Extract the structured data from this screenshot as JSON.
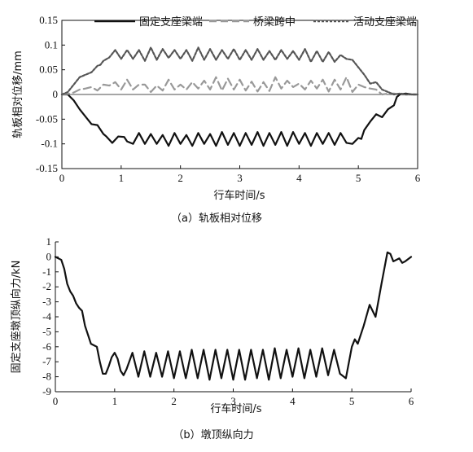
{
  "chart_data": [
    {
      "type": "line",
      "caption": "（a）轨板相对位移",
      "xlabel": "行车时间/s",
      "ylabel": "轨板相对位移/mm",
      "xlim": [
        0,
        6
      ],
      "ylim": [
        -0.15,
        0.15
      ],
      "xticks": [
        "0",
        "1",
        "2",
        "3",
        "4",
        "5",
        "6"
      ],
      "yticks": [
        "-0.15",
        "-0.1",
        "-0.05",
        "0",
        "0.05",
        "0.1",
        "0.15"
      ],
      "legend_position": "top",
      "series": [
        {
          "name": "固定支座梁端",
          "style": "solid",
          "color": "#111111",
          "x": [
            0,
            0.1,
            0.2,
            0.3,
            0.4,
            0.5,
            0.6,
            0.7,
            0.75,
            0.85,
            0.95,
            1.05,
            1.1,
            1.2,
            1.3,
            1.4,
            1.5,
            1.6,
            1.7,
            1.8,
            1.9,
            2.0,
            2.1,
            2.2,
            2.3,
            2.4,
            2.5,
            2.6,
            2.7,
            2.8,
            2.9,
            3.0,
            3.1,
            3.2,
            3.3,
            3.4,
            3.5,
            3.6,
            3.7,
            3.8,
            3.9,
            4.0,
            4.1,
            4.2,
            4.3,
            4.4,
            4.5,
            4.6,
            4.7,
            4.8,
            4.9,
            5.0,
            5.05,
            5.1,
            5.2,
            5.3,
            5.4,
            5.5,
            5.6,
            5.65,
            5.7,
            5.8,
            5.9,
            6.0
          ],
          "y": [
            0,
            0,
            -0.012,
            -0.03,
            -0.045,
            -0.06,
            -0.062,
            -0.08,
            -0.085,
            -0.098,
            -0.085,
            -0.086,
            -0.095,
            -0.1,
            -0.078,
            -0.1,
            -0.08,
            -0.1,
            -0.082,
            -0.104,
            -0.078,
            -0.1,
            -0.082,
            -0.104,
            -0.078,
            -0.1,
            -0.08,
            -0.104,
            -0.076,
            -0.102,
            -0.078,
            -0.104,
            -0.078,
            -0.102,
            -0.076,
            -0.104,
            -0.078,
            -0.102,
            -0.076,
            -0.104,
            -0.076,
            -0.1,
            -0.078,
            -0.104,
            -0.078,
            -0.1,
            -0.078,
            -0.102,
            -0.078,
            -0.098,
            -0.1,
            -0.088,
            -0.09,
            -0.072,
            -0.055,
            -0.04,
            -0.046,
            -0.03,
            -0.022,
            -0.005,
            0,
            0.002,
            0,
            0
          ]
        },
        {
          "name": "桥梁跨中",
          "style": "dash",
          "color": "#999999",
          "x": [
            0,
            0.1,
            0.2,
            0.3,
            0.4,
            0.5,
            0.6,
            0.7,
            0.8,
            0.9,
            1.0,
            1.1,
            1.2,
            1.3,
            1.4,
            1.5,
            1.6,
            1.7,
            1.8,
            1.9,
            2.0,
            2.1,
            2.2,
            2.3,
            2.4,
            2.5,
            2.6,
            2.7,
            2.8,
            2.9,
            3.0,
            3.1,
            3.2,
            3.3,
            3.4,
            3.5,
            3.6,
            3.7,
            3.8,
            3.9,
            4.0,
            4.1,
            4.2,
            4.3,
            4.4,
            4.5,
            4.6,
            4.7,
            4.8,
            4.9,
            5.0,
            5.1,
            5.2,
            5.3,
            5.4,
            5.5,
            5.6,
            5.7,
            5.8,
            5.9,
            6.0
          ],
          "y": [
            0,
            0.001,
            0.004,
            0.01,
            0.012,
            0.015,
            0.008,
            0.02,
            0.018,
            0.025,
            0.01,
            0.03,
            0.01,
            0.02,
            0.02,
            0.005,
            0.018,
            0.008,
            0.03,
            0.01,
            0.02,
            0.01,
            0.025,
            0.012,
            0.028,
            0.01,
            0.035,
            0.008,
            0.032,
            0.01,
            0.03,
            0.008,
            0.026,
            0.006,
            0.025,
            0.007,
            0.035,
            0.012,
            0.028,
            0.015,
            0.022,
            0.01,
            0.028,
            0.012,
            0.03,
            0.006,
            0.03,
            0.01,
            0.035,
            0.005,
            0.02,
            0.015,
            0.012,
            0.01,
            0.0,
            0.002,
            0.002,
            0.0,
            0.0,
            0.0,
            0.0
          ]
        },
        {
          "name": "活动支座梁端",
          "style": "dot",
          "color": "#555555",
          "x": [
            0,
            0.1,
            0.2,
            0.3,
            0.4,
            0.5,
            0.6,
            0.65,
            0.7,
            0.8,
            0.9,
            1.0,
            1.1,
            1.2,
            1.3,
            1.4,
            1.5,
            1.6,
            1.7,
            1.8,
            1.9,
            2.0,
            2.1,
            2.2,
            2.3,
            2.4,
            2.5,
            2.6,
            2.7,
            2.8,
            2.9,
            3.0,
            3.1,
            3.2,
            3.3,
            3.4,
            3.5,
            3.6,
            3.7,
            3.8,
            3.9,
            4.0,
            4.1,
            4.2,
            4.3,
            4.4,
            4.5,
            4.6,
            4.7,
            4.8,
            4.9,
            5.0,
            5.1,
            5.2,
            5.3,
            5.4,
            5.5,
            5.6,
            5.7,
            5.8,
            5.9,
            6.0
          ],
          "y": [
            0,
            0.005,
            0.02,
            0.035,
            0.04,
            0.045,
            0.058,
            0.06,
            0.068,
            0.075,
            0.09,
            0.072,
            0.09,
            0.072,
            0.09,
            0.068,
            0.095,
            0.07,
            0.092,
            0.074,
            0.09,
            0.072,
            0.09,
            0.068,
            0.095,
            0.07,
            0.092,
            0.07,
            0.09,
            0.072,
            0.092,
            0.07,
            0.09,
            0.07,
            0.092,
            0.07,
            0.088,
            0.07,
            0.09,
            0.072,
            0.088,
            0.07,
            0.092,
            0.066,
            0.088,
            0.066,
            0.086,
            0.066,
            0.08,
            0.072,
            0.07,
            0.055,
            0.04,
            0.022,
            0.025,
            0.01,
            0.005,
            0.0,
            0.002,
            0.0,
            0.0,
            0.0
          ]
        }
      ]
    },
    {
      "type": "line",
      "caption": "（b）墩顶纵向力",
      "xlabel": "行车时间/s",
      "ylabel": "固定支座墩顶纵向力/kN",
      "xlim": [
        0,
        6
      ],
      "ylim": [
        -9,
        1
      ],
      "xticks": [
        "0",
        "1",
        "2",
        "3",
        "4",
        "5",
        "6"
      ],
      "yticks": [
        "1",
        "0",
        "-1",
        "-2",
        "-3",
        "-4",
        "-5",
        "-6",
        "-7",
        "-8",
        "-9"
      ],
      "series": [
        {
          "style": "solid",
          "color": "#111111",
          "x": [
            0,
            0.1,
            0.15,
            0.2,
            0.25,
            0.3,
            0.35,
            0.4,
            0.45,
            0.5,
            0.55,
            0.6,
            0.65,
            0.7,
            0.75,
            0.8,
            0.85,
            0.9,
            0.95,
            1.0,
            1.05,
            1.1,
            1.15,
            1.2,
            1.3,
            1.4,
            1.5,
            1.6,
            1.7,
            1.8,
            1.9,
            2.0,
            2.1,
            2.2,
            2.3,
            2.4,
            2.5,
            2.6,
            2.7,
            2.8,
            2.9,
            3.0,
            3.1,
            3.2,
            3.3,
            3.4,
            3.5,
            3.6,
            3.7,
            3.8,
            3.9,
            4.0,
            4.1,
            4.2,
            4.3,
            4.4,
            4.5,
            4.6,
            4.7,
            4.8,
            4.9,
            5.0,
            5.05,
            5.1,
            5.2,
            5.3,
            5.4,
            5.5,
            5.6,
            5.65,
            5.7,
            5.8,
            5.85,
            5.9,
            6.0
          ],
          "y": [
            0,
            -0.2,
            -0.8,
            -1.8,
            -2.3,
            -2.6,
            -3.1,
            -3.4,
            -3.6,
            -4.6,
            -5.2,
            -5.8,
            -5.9,
            -6.0,
            -7.0,
            -7.8,
            -7.8,
            -7.3,
            -6.7,
            -6.4,
            -6.8,
            -7.6,
            -7.9,
            -7.5,
            -6.4,
            -8.0,
            -6.3,
            -8.0,
            -6.4,
            -8.0,
            -6.3,
            -8.1,
            -6.3,
            -8.1,
            -6.2,
            -8.1,
            -6.2,
            -8.2,
            -6.2,
            -8.1,
            -6.2,
            -8.2,
            -6.2,
            -8.2,
            -6.2,
            -8.1,
            -6.2,
            -8.2,
            -6.1,
            -8.1,
            -6.2,
            -8.0,
            -6.1,
            -8.1,
            -6.2,
            -8.0,
            -6.1,
            -7.9,
            -6.2,
            -7.8,
            -8.1,
            -6.0,
            -5.5,
            -5.8,
            -4.6,
            -3.2,
            -4.0,
            -1.8,
            0.3,
            0.2,
            -0.3,
            -0.1,
            -0.4,
            -0.3,
            0.0
          ]
        }
      ]
    }
  ]
}
